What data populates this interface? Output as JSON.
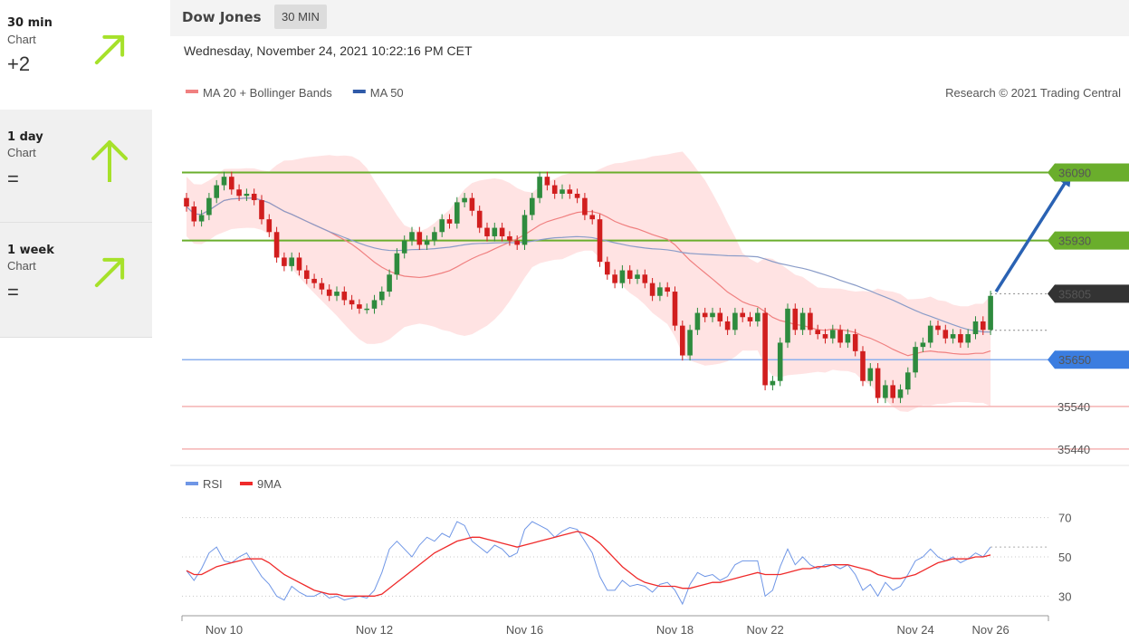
{
  "sidebar": [
    {
      "period": "30 min",
      "sub": "Chart",
      "score": "+2",
      "arrow": "up-right-arrow-icon",
      "angle": 45
    },
    {
      "period": "1 day",
      "sub": "Chart",
      "score": "=",
      "arrow": "up-arrow-icon",
      "angle": 0
    },
    {
      "period": "1 week",
      "sub": "Chart",
      "score": "=",
      "arrow": "up-right-arrow-icon",
      "angle": 45
    }
  ],
  "header": {
    "title": "Dow Jones",
    "timeframe": "30 MIN"
  },
  "datetime": "Wednesday, November 24, 2021 10:22:16 PM CET",
  "colors": {
    "arrow": "#a6e12a",
    "resistance": "#6aae2c",
    "support": "#3b7de0",
    "support_line": "#8bb0ee",
    "weak_support": "#f4b3b3",
    "current": "#333333",
    "bull": "#2e8b3e",
    "bear": "#d11e1e",
    "ma20": "#f08080",
    "ma50": "#8a9cc8",
    "band": "#ffdede",
    "rsi": "#6f96e6",
    "rsi_ma": "#ef2a2a",
    "projection": "#2a62b3"
  },
  "chart_data": [
    {
      "type": "candlestick",
      "legend": [
        {
          "label": "MA 20 + Bollinger Bands",
          "color": "#f08080"
        },
        {
          "label": "MA 50",
          "color": "#2f5aa8"
        }
      ],
      "legend_placement": "top-left",
      "credit": "Research © 2021 Trading Central",
      "ylim": [
        35410,
        36240
      ],
      "x_ticks": [
        "Nov 10",
        "Nov 12",
        "Nov 16",
        "Nov 18",
        "Nov 22",
        "Nov 24",
        "Nov 26"
      ],
      "x_tick_index": [
        5,
        25,
        45,
        65,
        77,
        97,
        107
      ],
      "levels": [
        {
          "value": 36090,
          "label": "36090",
          "kind": "resistance"
        },
        {
          "value": 35930,
          "label": "35930",
          "kind": "resistance"
        },
        {
          "value": 35805,
          "label": "35805",
          "kind": "current"
        },
        {
          "value": 35650,
          "label": "35650",
          "kind": "support"
        },
        {
          "value": 35540,
          "label": "35540",
          "kind": "weak_support"
        },
        {
          "value": 35440,
          "label": "35440",
          "kind": "weak_support"
        }
      ],
      "projection": {
        "from_index": 107,
        "from_value": 35810,
        "to_index": 117,
        "to_value": 36085
      },
      "closes": [
        36010,
        35975,
        35990,
        36030,
        36060,
        36080,
        36050,
        36035,
        36040,
        36025,
        35980,
        35950,
        35890,
        35870,
        35890,
        35860,
        35840,
        35830,
        35815,
        35800,
        35810,
        35790,
        35780,
        35770,
        35770,
        35790,
        35810,
        35850,
        35900,
        35930,
        35950,
        35920,
        35930,
        35950,
        35980,
        35970,
        36020,
        36030,
        36000,
        35960,
        35940,
        35960,
        35940,
        35930,
        35920,
        35990,
        36030,
        36080,
        36060,
        36040,
        36050,
        36040,
        36030,
        35990,
        35980,
        35880,
        35850,
        35830,
        35860,
        35840,
        35850,
        35830,
        35800,
        35820,
        35810,
        35730,
        35660,
        35720,
        35760,
        35750,
        35760,
        35740,
        35720,
        35760,
        35750,
        35740,
        35760,
        35590,
        35600,
        35690,
        35770,
        35720,
        35760,
        35720,
        35710,
        35700,
        35720,
        35690,
        35710,
        35670,
        35600,
        35630,
        35560,
        35590,
        35560,
        35580,
        35620,
        35680,
        35690,
        35730,
        35720,
        35700,
        35710,
        35690,
        35710,
        35740,
        35720,
        35800
      ]
    },
    {
      "type": "line",
      "series": [
        {
          "name": "RSI",
          "color": "#6f96e6",
          "values": [
            43,
            38,
            44,
            52,
            55,
            48,
            47,
            50,
            52,
            46,
            40,
            36,
            30,
            28,
            35,
            32,
            30,
            30,
            32,
            29,
            30,
            28,
            29,
            30,
            29,
            33,
            42,
            54,
            58,
            54,
            50,
            56,
            60,
            58,
            62,
            60,
            68,
            66,
            58,
            55,
            52,
            56,
            54,
            50,
            52,
            64,
            68,
            66,
            64,
            60,
            63,
            65,
            64,
            58,
            52,
            40,
            33,
            33,
            38,
            35,
            36,
            35,
            32,
            36,
            37,
            33,
            26,
            36,
            42,
            40,
            41,
            38,
            40,
            46,
            48,
            48,
            48,
            30,
            33,
            45,
            54,
            46,
            50,
            46,
            44,
            46,
            46,
            44,
            46,
            41,
            33,
            36,
            30,
            37,
            33,
            35,
            41,
            48,
            50,
            54,
            50,
            48,
            50,
            47,
            49,
            52,
            50,
            55
          ]
        },
        {
          "name": "9MA",
          "color": "#ef2a2a",
          "values": [
            43,
            41,
            41,
            43,
            45,
            46,
            47,
            48,
            49,
            49,
            49,
            47,
            44,
            41,
            39,
            37,
            35,
            33,
            32,
            31,
            31,
            30,
            30,
            30,
            30,
            30,
            31,
            34,
            37,
            40,
            43,
            46,
            49,
            52,
            54,
            56,
            58,
            59,
            60,
            60,
            59,
            58,
            57,
            56,
            55,
            56,
            57,
            58,
            59,
            60,
            61,
            62,
            63,
            62,
            60,
            57,
            53,
            49,
            45,
            42,
            39,
            37,
            36,
            35,
            35,
            35,
            34,
            34,
            35,
            36,
            37,
            37,
            38,
            39,
            40,
            41,
            42,
            41,
            41,
            41,
            42,
            43,
            44,
            44,
            45,
            45,
            46,
            46,
            46,
            45,
            44,
            43,
            41,
            40,
            39,
            39,
            40,
            41,
            43,
            45,
            47,
            48,
            49,
            49,
            49,
            50,
            50,
            51
          ]
        }
      ],
      "legend": [
        {
          "label": "RSI",
          "color": "#6f96e6"
        },
        {
          "label": "9MA",
          "color": "#ef2a2a"
        }
      ],
      "y_ticks": [
        70,
        50,
        30
      ],
      "ylim": [
        20,
        80
      ]
    }
  ]
}
